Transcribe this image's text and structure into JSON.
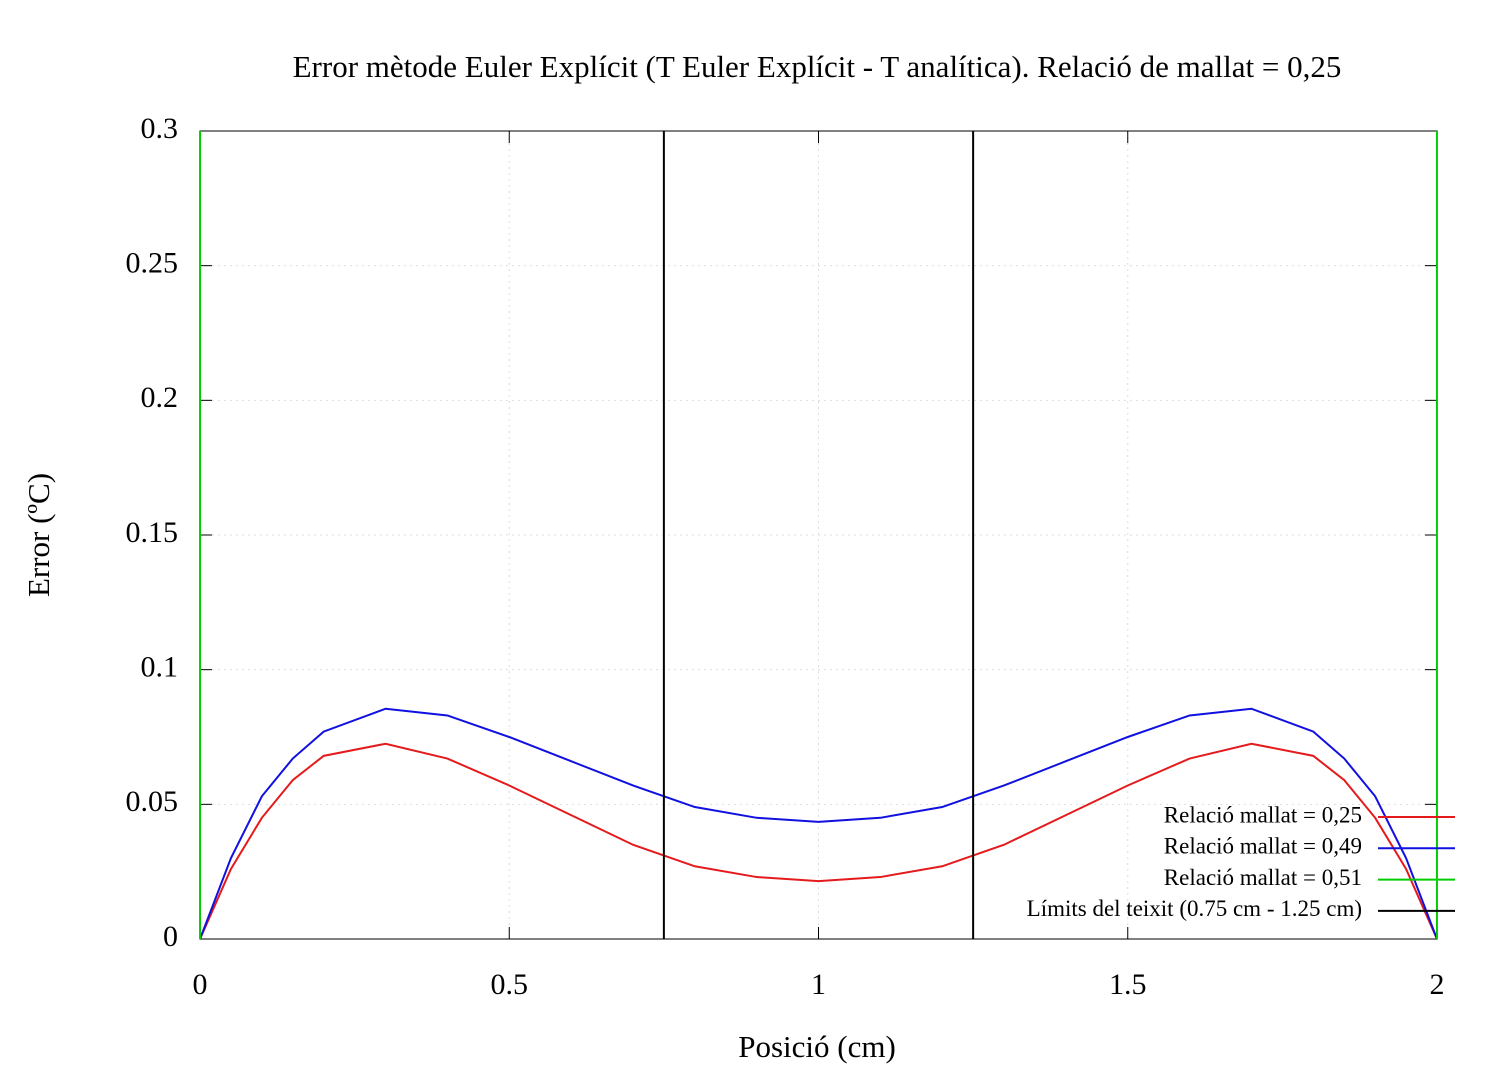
{
  "chart_data": {
    "type": "line",
    "title": "Error mètode Euler Explícit (T Euler Explícit - T analítica). Relació de mallat = 0,25",
    "xlabel": "Posició (cm)",
    "ylabel": "Error (ºC)",
    "xlim": [
      0,
      2
    ],
    "ylim": [
      0,
      0.3
    ],
    "xticks": [
      0,
      0.5,
      1,
      1.5,
      2
    ],
    "yticks": [
      0,
      0.05,
      0.1,
      0.15,
      0.2,
      0.25,
      0.3
    ],
    "grid": true,
    "legend": "bottom right",
    "series": [
      {
        "name": "Relació mallat = 0,25",
        "color": "#e41a1c",
        "x": [
          0,
          0.05,
          0.1,
          0.15,
          0.2,
          0.3,
          0.4,
          0.5,
          0.6,
          0.7,
          0.8,
          0.9,
          1,
          1.1,
          1.2,
          1.3,
          1.4,
          1.5,
          1.6,
          1.7,
          1.8,
          1.85,
          1.9,
          1.95,
          2
        ],
        "values": [
          0,
          0.026,
          0.045,
          0.059,
          0.068,
          0.0725,
          0.067,
          0.057,
          0.046,
          0.035,
          0.027,
          0.023,
          0.0215,
          0.023,
          0.027,
          0.035,
          0.046,
          0.057,
          0.067,
          0.0725,
          0.068,
          0.059,
          0.045,
          0.026,
          0
        ]
      },
      {
        "name": "Relació mallat = 0,49",
        "color": "#1010e0",
        "x": [
          0,
          0.05,
          0.1,
          0.15,
          0.2,
          0.3,
          0.4,
          0.5,
          0.6,
          0.7,
          0.8,
          0.9,
          1,
          1.1,
          1.2,
          1.3,
          1.4,
          1.5,
          1.6,
          1.7,
          1.8,
          1.85,
          1.9,
          1.95,
          2
        ],
        "values": [
          0,
          0.03,
          0.053,
          0.067,
          0.077,
          0.0855,
          0.083,
          0.075,
          0.066,
          0.057,
          0.049,
          0.045,
          0.0435,
          0.045,
          0.049,
          0.057,
          0.066,
          0.075,
          0.083,
          0.0855,
          0.077,
          0.067,
          0.053,
          0.03,
          0
        ]
      },
      {
        "name": "Relació mallat = 0,51",
        "color": "#00cc00",
        "x": [
          0,
          0,
          1,
          2,
          2
        ],
        "values": [
          0,
          0.3,
          null,
          0.3,
          0
        ]
      },
      {
        "name": "Límits del teixit (0.75 cm - 1.25 cm)",
        "color": "#000000",
        "x": [
          0.75,
          0.75,
          1,
          1.25,
          1.25
        ],
        "values": [
          0,
          0.3,
          null,
          0.3,
          0
        ]
      }
    ]
  }
}
